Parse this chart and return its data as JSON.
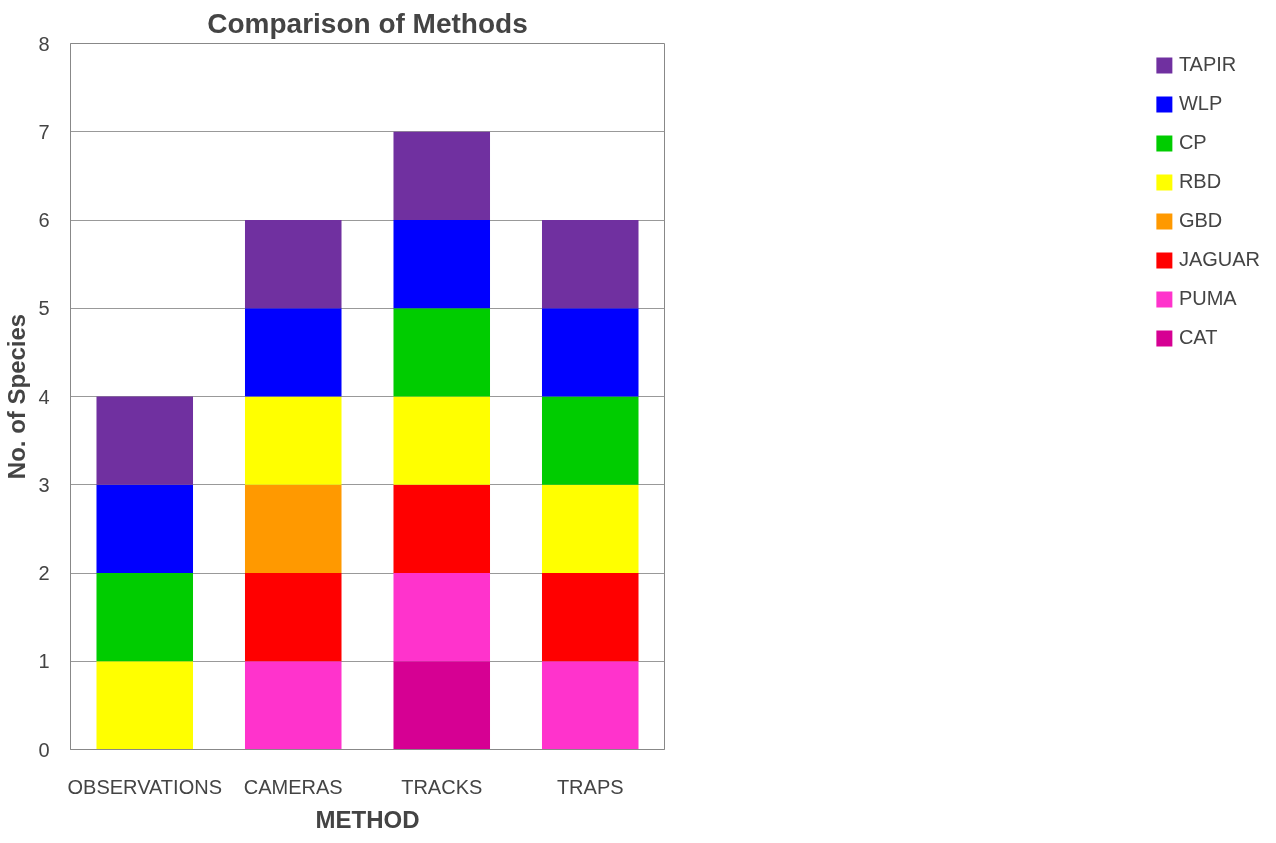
{
  "chart_data": {
    "type": "bar",
    "title": "Comparison of Methods",
    "xlabel": "METHOD",
    "ylabel": "No. of Species",
    "stacked": true,
    "categories": [
      "OBSERVATIONS",
      "CAMERAS",
      "TRACKS",
      "TRAPS"
    ],
    "series": [
      {
        "name": "CAT",
        "color": "#d60093",
        "values": [
          0,
          0,
          1,
          0
        ]
      },
      {
        "name": "PUMA",
        "color": "#ff33cc",
        "values": [
          0,
          1,
          1,
          1
        ]
      },
      {
        "name": "JAGUAR",
        "color": "#ff0000",
        "values": [
          0,
          1,
          1,
          1
        ]
      },
      {
        "name": "GBD",
        "color": "#ff9900",
        "values": [
          0,
          1,
          0,
          0
        ]
      },
      {
        "name": "RBD",
        "color": "#ffff00",
        "values": [
          1,
          1,
          1,
          1
        ]
      },
      {
        "name": "CP",
        "color": "#00cc00",
        "values": [
          1,
          0,
          1,
          1
        ]
      },
      {
        "name": "WLP",
        "color": "#0000ff",
        "values": [
          1,
          1,
          1,
          1
        ]
      },
      {
        "name": "TAPIR",
        "color": "#7030a0",
        "values": [
          1,
          1,
          1,
          1
        ]
      }
    ],
    "ylim": [
      0,
      8
    ],
    "yticks": [
      0,
      1,
      2,
      3,
      4,
      5,
      6,
      7,
      8
    ],
    "grid": "y",
    "legend": "right"
  }
}
